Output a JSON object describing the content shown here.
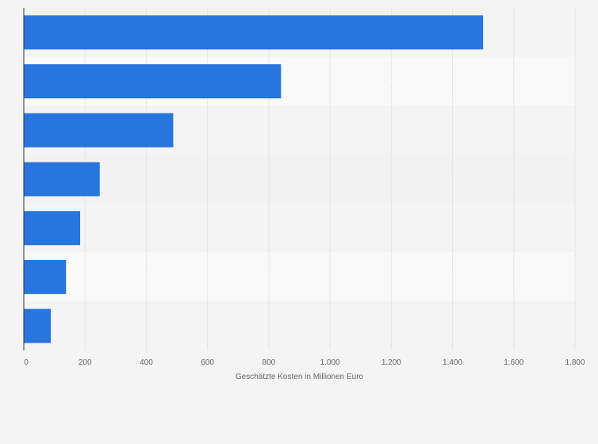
{
  "chart_data": {
    "type": "bar",
    "orientation": "horizontal",
    "categories": [
      "",
      "",
      "",
      "",
      "",
      "",
      ""
    ],
    "values": [
      1500,
      840,
      488,
      248,
      184,
      138,
      88
    ],
    "xlim": [
      0,
      1800
    ],
    "xticks": [
      0,
      200,
      400,
      600,
      800,
      1000,
      1200,
      1400,
      1600,
      1800
    ],
    "xtick_labels": [
      "0",
      "200",
      "400",
      "600",
      "800",
      "1.000",
      "1.200",
      "1.400",
      "1.600",
      "1.800"
    ],
    "xlabel": "Geschätzte Kosten in Millionen Euro",
    "grid": true,
    "colors": {
      "bar": "#2876dd",
      "page_background": "#f4f4f4",
      "band_light": "#f9f9f9",
      "band_dark": "#f2f2f2",
      "grid": "#d9d9d9",
      "axis": "#333333",
      "text": "#666666"
    }
  }
}
